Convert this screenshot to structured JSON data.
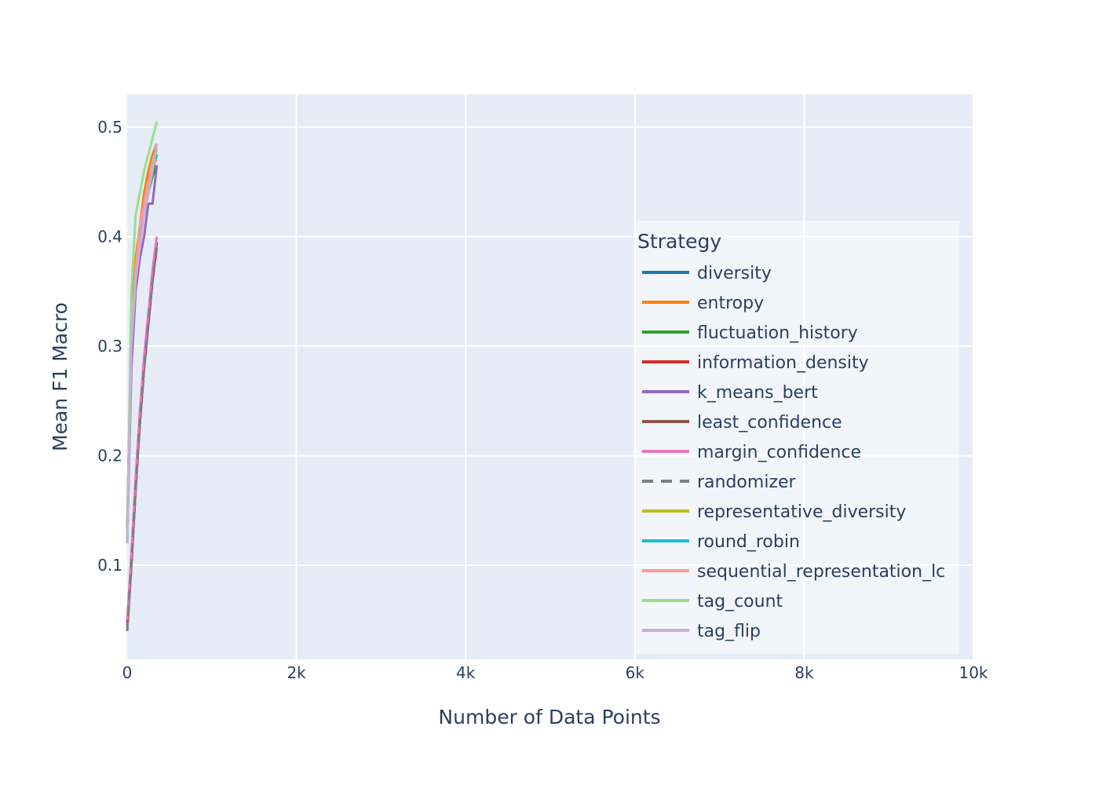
{
  "chart_data": {
    "type": "line",
    "title": "",
    "xlabel": "Number of Data Points",
    "ylabel": "Mean F1 Macro",
    "xlim": [
      0,
      10000
    ],
    "ylim": [
      0.014,
      0.53
    ],
    "x_ticks": [
      0,
      2000,
      4000,
      6000,
      8000,
      10000
    ],
    "x_tick_labels": [
      "0",
      "2k",
      "4k",
      "6k",
      "8k",
      "10k"
    ],
    "y_ticks": [
      0.1,
      0.2,
      0.3,
      0.4,
      0.5
    ],
    "y_tick_labels": [
      "0.1",
      "0.2",
      "0.3",
      "0.4",
      "0.5"
    ],
    "grid": true,
    "legend": {
      "title": "Strategy",
      "placement": "right"
    },
    "series": [
      {
        "name": "diversity",
        "color": "#1f77b4",
        "dash": "solid",
        "x": [
          0,
          50,
          100,
          150,
          200,
          250,
          300,
          350
        ],
        "y": [
          0.12,
          0.3,
          0.37,
          0.4,
          0.42,
          0.44,
          0.46,
          0.475
        ]
      },
      {
        "name": "entropy",
        "color": "#ff7f0e",
        "dash": "solid",
        "x": [
          0,
          50,
          100,
          150,
          200,
          250,
          300,
          350
        ],
        "y": [
          0.12,
          0.32,
          0.38,
          0.41,
          0.44,
          0.46,
          0.475,
          0.485
        ]
      },
      {
        "name": "fluctuation_history",
        "color": "#2ca02c",
        "dash": "solid",
        "x": [
          0,
          50,
          100,
          150,
          200,
          250,
          300,
          350
        ],
        "y": [
          0.135,
          0.32,
          0.37,
          0.4,
          0.42,
          0.44,
          0.455,
          0.465
        ]
      },
      {
        "name": "information_density",
        "color": "#d62728",
        "dash": "solid",
        "x": [
          0,
          50,
          100,
          150,
          200,
          250,
          300,
          350
        ],
        "y": [
          0.045,
          0.1,
          0.17,
          0.23,
          0.28,
          0.32,
          0.36,
          0.39
        ]
      },
      {
        "name": "k_means_bert",
        "color": "#9467bd",
        "dash": "solid",
        "x": [
          0,
          50,
          100,
          150,
          200,
          250,
          300,
          350
        ],
        "y": [
          0.12,
          0.28,
          0.35,
          0.38,
          0.4,
          0.43,
          0.43,
          0.465
        ]
      },
      {
        "name": "least_confidence",
        "color": "#8c564b",
        "dash": "solid",
        "x": [
          0,
          50,
          100,
          150,
          200,
          250,
          300,
          350
        ],
        "y": [
          0.04,
          0.1,
          0.17,
          0.23,
          0.28,
          0.32,
          0.36,
          0.395
        ]
      },
      {
        "name": "margin_confidence",
        "color": "#e377c2",
        "dash": "solid",
        "x": [
          0,
          50,
          100,
          150,
          200,
          250,
          300,
          350
        ],
        "y": [
          0.05,
          0.11,
          0.18,
          0.24,
          0.29,
          0.33,
          0.37,
          0.4
        ]
      },
      {
        "name": "randomizer",
        "color": "#7f7f7f",
        "dash": "dash",
        "x": [
          0,
          50,
          100,
          150,
          200,
          250,
          300,
          350
        ],
        "y": [
          0.04,
          0.1,
          0.17,
          0.23,
          0.28,
          0.32,
          0.36,
          0.39
        ]
      },
      {
        "name": "representative_diversity",
        "color": "#bcbd22",
        "dash": "solid",
        "x": [
          0,
          50,
          100,
          150,
          200,
          250,
          300,
          350
        ],
        "y": [
          0.12,
          0.31,
          0.37,
          0.4,
          0.43,
          0.45,
          0.465,
          0.48
        ]
      },
      {
        "name": "round_robin",
        "color": "#17becf",
        "dash": "solid",
        "x": [
          0,
          50,
          100,
          150,
          200,
          250,
          300,
          350
        ],
        "y": [
          0.12,
          0.31,
          0.37,
          0.4,
          0.43,
          0.45,
          0.465,
          0.475
        ]
      },
      {
        "name": "sequential_representation_lc",
        "color": "#ff9896",
        "dash": "solid",
        "x": [
          0,
          50,
          100,
          150,
          200,
          250,
          300,
          350
        ],
        "y": [
          0.12,
          0.31,
          0.37,
          0.41,
          0.43,
          0.45,
          0.465,
          0.47
        ]
      },
      {
        "name": "tag_count",
        "color": "#98df8a",
        "dash": "solid",
        "x": [
          0,
          50,
          100,
          150,
          200,
          250,
          300,
          350
        ],
        "y": [
          0.12,
          0.35,
          0.42,
          0.44,
          0.46,
          0.475,
          0.49,
          0.505
        ]
      },
      {
        "name": "tag_flip",
        "color": "#c5b0d5",
        "dash": "solid",
        "x": [
          0,
          50,
          100,
          150,
          200,
          250,
          300,
          350
        ],
        "y": [
          0.12,
          0.3,
          0.36,
          0.39,
          0.42,
          0.44,
          0.46,
          0.485
        ]
      }
    ]
  }
}
